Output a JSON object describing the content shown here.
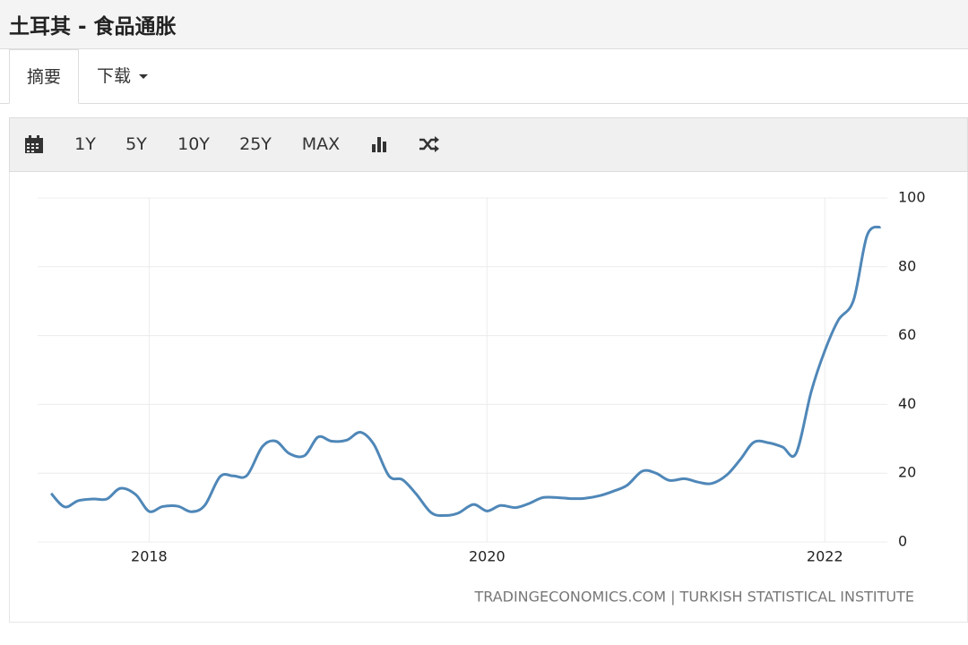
{
  "header": {
    "title": "土耳其 - 食品通胀"
  },
  "tabs": [
    "摘要",
    "下载"
  ],
  "toolbar": [
    "1Y",
    "5Y",
    "10Y",
    "25Y",
    "MAX"
  ],
  "chart_data": {
    "type": "line",
    "x": [
      2017.42,
      2017.5,
      2017.58,
      2017.67,
      2017.75,
      2017.83,
      2017.92,
      2018.0,
      2018.08,
      2018.17,
      2018.25,
      2018.33,
      2018.42,
      2018.5,
      2018.58,
      2018.67,
      2018.75,
      2018.83,
      2018.92,
      2019.0,
      2019.08,
      2019.17,
      2019.25,
      2019.33,
      2019.42,
      2019.5,
      2019.58,
      2019.67,
      2019.75,
      2019.83,
      2019.92,
      2020.0,
      2020.08,
      2020.17,
      2020.25,
      2020.33,
      2020.42,
      2020.5,
      2020.58,
      2020.67,
      2020.75,
      2020.83,
      2020.92,
      2021.0,
      2021.08,
      2021.17,
      2021.25,
      2021.33,
      2021.42,
      2021.5,
      2021.58,
      2021.67,
      2021.75,
      2021.83,
      2021.92,
      2022.0,
      2022.08,
      2022.17,
      2022.25,
      2022.33
    ],
    "values": [
      14.1,
      10.2,
      12.0,
      12.5,
      12.5,
      15.6,
      13.8,
      8.9,
      10.3,
      10.4,
      8.8,
      10.7,
      19.0,
      19.2,
      19.4,
      27.7,
      29.3,
      25.7,
      25.1,
      30.5,
      29.3,
      29.6,
      31.9,
      28.4,
      19.2,
      18.1,
      14.0,
      8.5,
      7.7,
      8.4,
      10.9,
      9.0,
      10.6,
      10.0,
      11.2,
      12.9,
      12.9,
      12.6,
      12.7,
      13.5,
      14.8,
      16.5,
      20.6,
      20.0,
      17.9,
      18.4,
      17.4,
      17.0,
      19.5,
      24.0,
      29.0,
      28.8,
      27.6,
      25.8,
      43.8,
      55.6,
      64.5,
      70.3,
      89.1,
      91.6
    ],
    "color": "#4f87b8",
    "xlim": [
      2017.34,
      2022.37
    ],
    "xticks": [
      2018,
      2020,
      2022
    ],
    "ylim": [
      0,
      100
    ],
    "yticks": [
      0,
      20,
      40,
      60,
      80,
      100
    ],
    "grid": true,
    "source": "TRADINGECONOMICS.COM | TURKISH STATISTICAL INSTITUTE"
  }
}
